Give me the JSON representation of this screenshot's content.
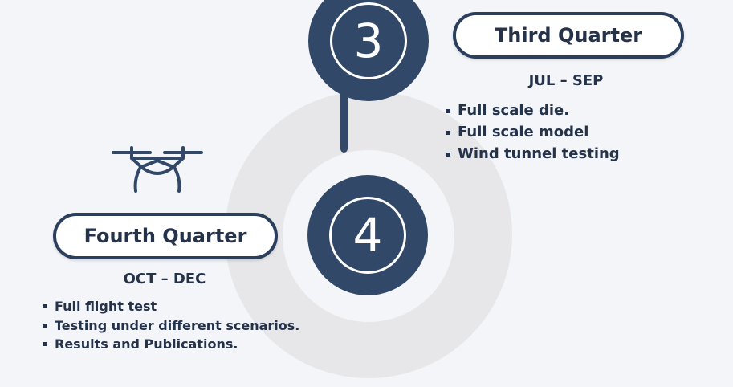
{
  "steps": [
    {
      "number": "3",
      "title": "Third Quarter",
      "range": "JUL – SEP",
      "items": [
        "Full scale die.",
        "Full scale model",
        "Wind tunnel testing"
      ]
    },
    {
      "number": "4",
      "title": "Fourth Quarter",
      "range": "OCT – DEC",
      "items": [
        "Full flight test",
        "Testing under different scenarios.",
        "Results and Publications."
      ]
    }
  ],
  "icons": {
    "drone": "drone-icon"
  },
  "colors": {
    "accent": "#314868",
    "text": "#24324a",
    "background": "#f3f5f9",
    "ring": "#e7e7e9"
  }
}
